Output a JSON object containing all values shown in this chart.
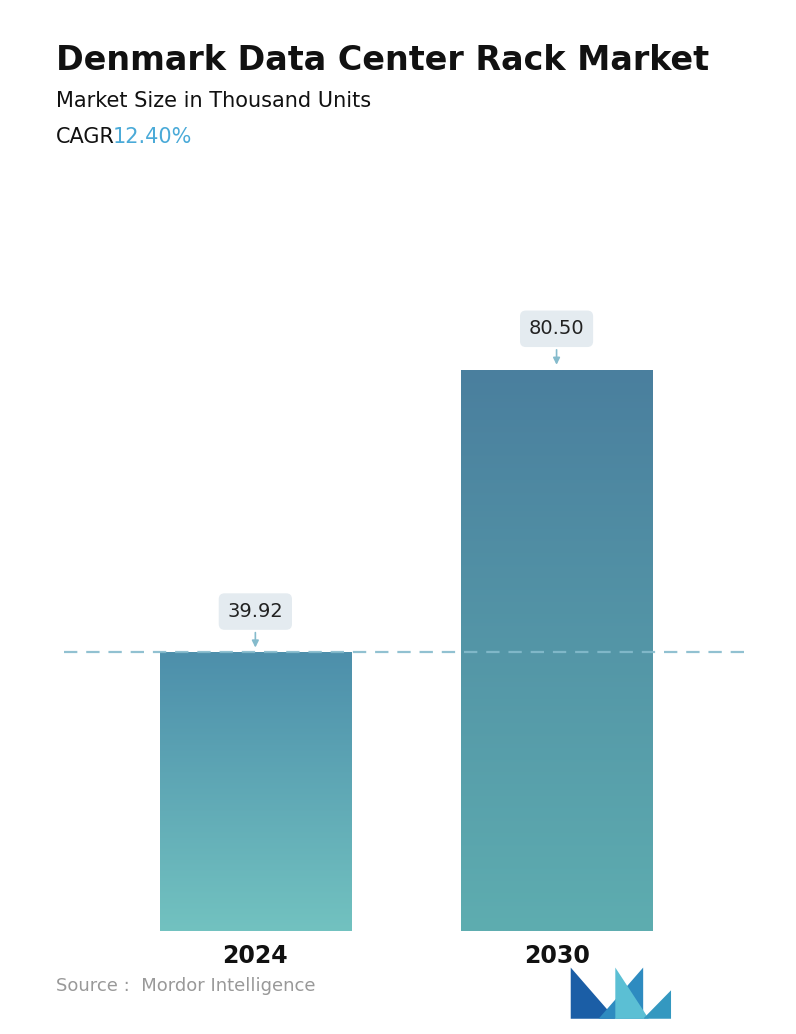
{
  "title": "Denmark Data Center Rack Market",
  "subtitle": "Market Size in Thousand Units",
  "cagr_label": "CAGR",
  "cagr_value": "12.40%",
  "cagr_color": "#4AAAD8",
  "categories": [
    "2024",
    "2030"
  ],
  "values": [
    39.92,
    80.5
  ],
  "bar1_color_top": "#4D8FAB",
  "bar1_color_bottom": "#72C2C0",
  "bar2_color_top": "#4A7F9E",
  "bar2_color_bottom": "#5EADB0",
  "dashed_line_color": "#85BBCC",
  "annotation_box_color": "#E4EBF0",
  "annotation_text_color": "#222222",
  "source_text": "Source :  Mordor Intelligence",
  "source_color": "#999999",
  "background_color": "#ffffff",
  "title_fontsize": 24,
  "subtitle_fontsize": 15,
  "cagr_fontsize": 15,
  "annotation_fontsize": 14,
  "xlabel_fontsize": 17,
  "source_fontsize": 13,
  "ylim": [
    0,
    92
  ],
  "bar_width": 0.28,
  "positions": [
    0.28,
    0.72
  ]
}
